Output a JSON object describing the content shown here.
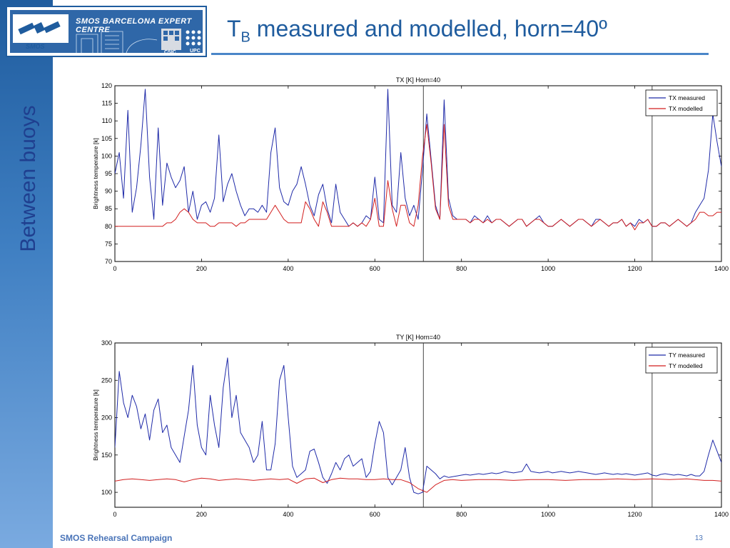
{
  "slide": {
    "title_prefix": "T",
    "title_subscript": "B",
    "title_rest": " measured and modelled, horn=40º",
    "side_label": "Between  buoys",
    "footer": "SMOS Rehearsal Campaign",
    "page_number": "13"
  },
  "logo": {
    "title": "SMOS BARCELONA EXPERT CENTRE",
    "smos": "SMOS",
    "csic": "CSIC",
    "upc": "UPC"
  },
  "colors": {
    "measured": "#1f2aa8",
    "modelled": "#d21f1f",
    "accent": "#1f5c9e"
  },
  "chart_data": [
    {
      "type": "line",
      "title": "TX [K] Horn=40",
      "xlabel": "",
      "ylabel": "Brightness temperature [k]",
      "xlim": [
        0,
        1400
      ],
      "ylim": [
        70,
        120
      ],
      "xticks": [
        0,
        200,
        400,
        600,
        800,
        1000,
        1200,
        1400
      ],
      "yticks": [
        70,
        75,
        80,
        85,
        90,
        95,
        100,
        105,
        110,
        115,
        120
      ],
      "vlines": [
        712,
        1240
      ],
      "legend_position": "top-right",
      "series": [
        {
          "name": "TX measured",
          "color": "#1f2aa8",
          "x": [
            0,
            10,
            20,
            30,
            40,
            50,
            60,
            70,
            80,
            90,
            100,
            110,
            120,
            130,
            140,
            150,
            160,
            170,
            180,
            190,
            200,
            210,
            220,
            230,
            240,
            250,
            260,
            270,
            280,
            290,
            300,
            310,
            320,
            330,
            340,
            350,
            360,
            370,
            380,
            390,
            400,
            410,
            420,
            430,
            440,
            450,
            460,
            470,
            480,
            490,
            500,
            510,
            520,
            530,
            540,
            550,
            560,
            570,
            580,
            590,
            600,
            610,
            620,
            630,
            640,
            650,
            660,
            670,
            680,
            690,
            700,
            710,
            720,
            730,
            740,
            750,
            760,
            770,
            780,
            790,
            800,
            810,
            820,
            830,
            840,
            850,
            860,
            870,
            880,
            890,
            900,
            910,
            920,
            930,
            940,
            950,
            960,
            970,
            980,
            990,
            1000,
            1010,
            1020,
            1030,
            1040,
            1050,
            1060,
            1070,
            1080,
            1090,
            1100,
            1110,
            1120,
            1130,
            1140,
            1150,
            1160,
            1170,
            1180,
            1190,
            1200,
            1210,
            1220,
            1230,
            1240,
            1250,
            1260,
            1270,
            1280,
            1290,
            1300,
            1310,
            1320,
            1330,
            1340,
            1350,
            1360,
            1370,
            1380,
            1390,
            1400
          ],
          "y": [
            95,
            101,
            88,
            113,
            84,
            91,
            103,
            119,
            94,
            82,
            108,
            86,
            98,
            94,
            91,
            93,
            97,
            84,
            90,
            82,
            86,
            87,
            84,
            88,
            106,
            87,
            92,
            95,
            90,
            86,
            83,
            85,
            85,
            84,
            86,
            84,
            101,
            108,
            91,
            87,
            86,
            90,
            92,
            97,
            92,
            86,
            83,
            89,
            92,
            85,
            81,
            92,
            84,
            82,
            80,
            81,
            80,
            81,
            83,
            82,
            94,
            82,
            81,
            119,
            86,
            84,
            101,
            88,
            83,
            86,
            82,
            96,
            112,
            99,
            86,
            82,
            116,
            88,
            83,
            82,
            82,
            82,
            81,
            83,
            82,
            81,
            83,
            81,
            82,
            82,
            81,
            80,
            81,
            82,
            82,
            80,
            81,
            82,
            83,
            81,
            80,
            80,
            81,
            82,
            81,
            80,
            81,
            82,
            82,
            81,
            80,
            82,
            82,
            81,
            80,
            81,
            81,
            82,
            80,
            81,
            80,
            82,
            81,
            82,
            80,
            80,
            81,
            81,
            80,
            81,
            82,
            81,
            80,
            81,
            84,
            86,
            88,
            96,
            112,
            104,
            97
          ]
        },
        {
          "name": "TX modelled",
          "color": "#d21f1f",
          "x": [
            0,
            10,
            20,
            30,
            40,
            50,
            60,
            70,
            80,
            90,
            100,
            110,
            120,
            130,
            140,
            150,
            160,
            170,
            180,
            190,
            200,
            210,
            220,
            230,
            240,
            250,
            260,
            270,
            280,
            290,
            300,
            310,
            320,
            330,
            340,
            350,
            360,
            370,
            380,
            390,
            400,
            410,
            420,
            430,
            440,
            450,
            460,
            470,
            480,
            490,
            500,
            510,
            520,
            530,
            540,
            550,
            560,
            570,
            580,
            590,
            600,
            610,
            620,
            630,
            640,
            650,
            660,
            670,
            680,
            690,
            700,
            710,
            720,
            730,
            740,
            750,
            760,
            770,
            780,
            790,
            800,
            810,
            820,
            830,
            840,
            850,
            860,
            870,
            880,
            890,
            900,
            910,
            920,
            930,
            940,
            950,
            960,
            970,
            980,
            990,
            1000,
            1010,
            1020,
            1030,
            1040,
            1050,
            1060,
            1070,
            1080,
            1090,
            1100,
            1110,
            1120,
            1130,
            1140,
            1150,
            1160,
            1170,
            1180,
            1190,
            1200,
            1210,
            1220,
            1230,
            1240,
            1250,
            1260,
            1270,
            1280,
            1290,
            1300,
            1310,
            1320,
            1330,
            1340,
            1350,
            1360,
            1370,
            1380,
            1390,
            1400
          ],
          "y": [
            80,
            80,
            80,
            80,
            80,
            80,
            80,
            80,
            80,
            80,
            80,
            80,
            81,
            81,
            82,
            84,
            85,
            84,
            82,
            81,
            81,
            81,
            80,
            80,
            81,
            81,
            81,
            81,
            80,
            81,
            81,
            82,
            82,
            82,
            82,
            82,
            84,
            86,
            84,
            82,
            81,
            81,
            81,
            81,
            87,
            85,
            82,
            80,
            87,
            84,
            80,
            80,
            80,
            80,
            80,
            81,
            80,
            81,
            80,
            82,
            88,
            80,
            80,
            93,
            85,
            80,
            86,
            86,
            81,
            80,
            86,
            100,
            109,
            98,
            85,
            82,
            109,
            86,
            82,
            82,
            82,
            82,
            81,
            82,
            82,
            81,
            82,
            81,
            82,
            82,
            81,
            80,
            81,
            82,
            82,
            80,
            81,
            82,
            82,
            81,
            80,
            80,
            81,
            82,
            81,
            80,
            81,
            82,
            82,
            81,
            80,
            81,
            82,
            81,
            80,
            81,
            81,
            82,
            80,
            81,
            79,
            81,
            81,
            82,
            80,
            80,
            81,
            81,
            80,
            81,
            82,
            81,
            80,
            81,
            82,
            84,
            84,
            83,
            83,
            84,
            84
          ]
        }
      ]
    },
    {
      "type": "line",
      "title": "TY [K] Horn=40",
      "xlabel": "",
      "ylabel": "Brightness temperature [k]",
      "xlim": [
        0,
        1400
      ],
      "ylim": [
        80,
        300
      ],
      "xticks": [
        0,
        200,
        400,
        600,
        800,
        1000,
        1200,
        1400
      ],
      "yticks": [
        100,
        150,
        200,
        250,
        300
      ],
      "vlines": [
        712,
        1240
      ],
      "legend_position": "top-right",
      "series": [
        {
          "name": "TY measured",
          "color": "#1f2aa8",
          "x": [
            0,
            10,
            20,
            30,
            40,
            50,
            60,
            70,
            80,
            90,
            100,
            110,
            120,
            130,
            140,
            150,
            160,
            170,
            180,
            190,
            200,
            210,
            220,
            230,
            240,
            250,
            260,
            270,
            280,
            290,
            300,
            310,
            320,
            330,
            340,
            350,
            360,
            370,
            380,
            390,
            400,
            410,
            420,
            430,
            440,
            450,
            460,
            470,
            480,
            490,
            500,
            510,
            520,
            530,
            540,
            550,
            560,
            570,
            580,
            590,
            600,
            610,
            620,
            630,
            640,
            650,
            660,
            670,
            680,
            690,
            700,
            710,
            720,
            730,
            740,
            750,
            760,
            770,
            780,
            790,
            800,
            810,
            820,
            830,
            840,
            850,
            860,
            870,
            880,
            890,
            900,
            910,
            920,
            930,
            940,
            950,
            960,
            970,
            980,
            990,
            1000,
            1010,
            1020,
            1030,
            1040,
            1050,
            1060,
            1070,
            1080,
            1090,
            1100,
            1110,
            1120,
            1130,
            1140,
            1150,
            1160,
            1170,
            1180,
            1190,
            1200,
            1210,
            1220,
            1230,
            1240,
            1250,
            1260,
            1270,
            1280,
            1290,
            1300,
            1310,
            1320,
            1330,
            1340,
            1350,
            1360,
            1370,
            1380,
            1390,
            1400
          ],
          "y": [
            160,
            262,
            220,
            200,
            230,
            215,
            185,
            205,
            170,
            210,
            225,
            180,
            190,
            160,
            150,
            140,
            175,
            210,
            270,
            190,
            160,
            150,
            230,
            190,
            160,
            240,
            280,
            200,
            230,
            180,
            170,
            160,
            140,
            150,
            195,
            130,
            130,
            165,
            250,
            270,
            200,
            135,
            120,
            125,
            130,
            155,
            158,
            140,
            120,
            112,
            125,
            140,
            130,
            145,
            150,
            135,
            140,
            145,
            120,
            128,
            165,
            195,
            180,
            120,
            110,
            120,
            130,
            160,
            120,
            100,
            98,
            100,
            135,
            130,
            125,
            118,
            122,
            120,
            121,
            122,
            123,
            124,
            123,
            124,
            125,
            124,
            125,
            126,
            125,
            126,
            128,
            127,
            126,
            127,
            128,
            138,
            128,
            127,
            126,
            127,
            128,
            126,
            127,
            128,
            127,
            126,
            127,
            128,
            127,
            126,
            125,
            124,
            125,
            126,
            125,
            124,
            125,
            124,
            125,
            124,
            123,
            124,
            125,
            126,
            123,
            122,
            124,
            125,
            124,
            123,
            124,
            123,
            122,
            124,
            122,
            122,
            128,
            150,
            170,
            155,
            140
          ]
        },
        {
          "name": "TY modelled",
          "color": "#d21f1f",
          "x": [
            0,
            20,
            40,
            60,
            80,
            100,
            120,
            140,
            160,
            180,
            200,
            220,
            240,
            260,
            280,
            300,
            320,
            340,
            360,
            380,
            400,
            420,
            440,
            460,
            480,
            500,
            520,
            540,
            560,
            580,
            600,
            620,
            640,
            660,
            680,
            700,
            720,
            740,
            760,
            780,
            800,
            840,
            880,
            920,
            960,
            1000,
            1040,
            1080,
            1120,
            1160,
            1200,
            1240,
            1280,
            1320,
            1360,
            1380,
            1400
          ],
          "y": [
            115,
            117,
            118,
            117,
            116,
            117,
            118,
            117,
            114,
            117,
            119,
            118,
            116,
            117,
            118,
            117,
            116,
            117,
            118,
            117,
            118,
            112,
            118,
            119,
            113,
            117,
            119,
            118,
            118,
            117,
            117,
            118,
            117,
            117,
            113,
            105,
            100,
            110,
            116,
            117,
            116,
            117,
            117,
            116,
            117,
            117,
            116,
            117,
            117,
            118,
            117,
            118,
            117,
            118,
            116,
            116,
            115
          ]
        }
      ]
    }
  ]
}
